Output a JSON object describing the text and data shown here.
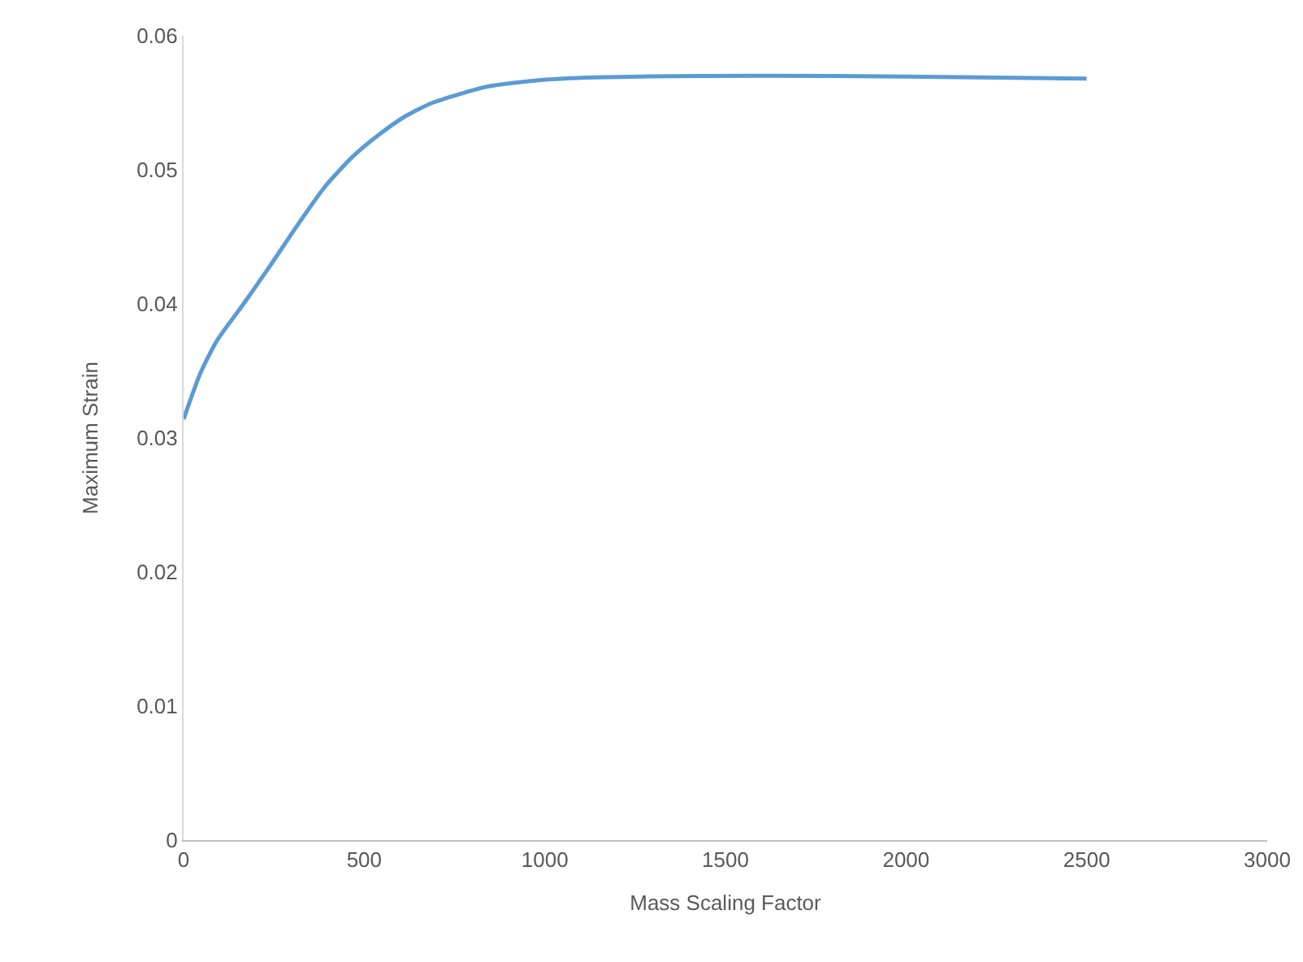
{
  "chart_data": {
    "type": "line",
    "xlabel": "Mass Scaling Factor",
    "ylabel": "Maximum Strain",
    "x": [
      0,
      46,
      91,
      166,
      241,
      316,
      390,
      465,
      540,
      614,
      689,
      839,
      988,
      1137,
      1436,
      1800,
      2200,
      2500
    ],
    "series": [
      {
        "color": "#5b9bd5",
        "values": [
          0.0314,
          0.0348,
          0.0372,
          0.04,
          0.0429,
          0.0459,
          0.0487,
          0.0509,
          0.0526,
          0.054,
          0.055,
          0.0562,
          0.0567,
          0.0569,
          0.057,
          0.057,
          0.0569,
          0.0568
        ]
      }
    ],
    "xlim": [
      0,
      3000
    ],
    "xticks": [
      0,
      500,
      1000,
      1500,
      2000,
      2500,
      3000
    ],
    "ylim": [
      0,
      0.06
    ],
    "yticks": [
      0,
      0.01,
      0.02,
      0.03,
      0.04,
      0.05,
      0.06
    ],
    "grid": false,
    "marker": "none",
    "line_style": "solid"
  }
}
